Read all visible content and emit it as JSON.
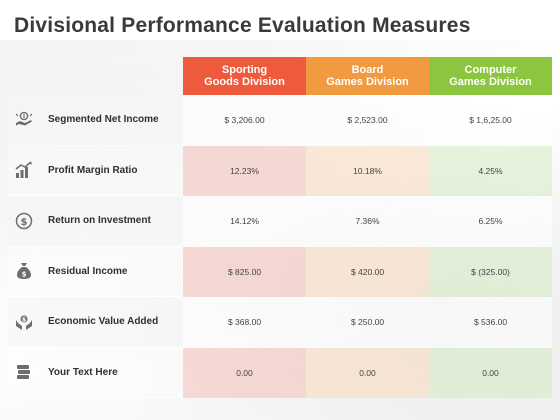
{
  "slide": {
    "title": "Divisional Performance Evaluation Measures"
  },
  "colors": {
    "sporting": "#ee5a3c",
    "board": "#f29a3f",
    "computer": "#8cc63f",
    "icon": "#6d6d6d"
  },
  "columns": [
    {
      "label_line1": "Sporting",
      "label_line2": "Goods Division"
    },
    {
      "label_line1": "Board",
      "label_line2": "Games Division"
    },
    {
      "label_line1": "Computer",
      "label_line2": "Games Division"
    }
  ],
  "rows": [
    {
      "label": "Segmented Net Income",
      "icon": "hand-dollar-icon",
      "values": [
        "$ 3,206.00",
        "$ 2,523.00",
        "$ 1,6,25.00"
      ]
    },
    {
      "label": "Profit Margin Ratio",
      "icon": "growth-chart-icon",
      "values": [
        "12.23%",
        "10.18%",
        "4.25%"
      ]
    },
    {
      "label": "Return on Investment",
      "icon": "dollar-cycle-icon",
      "values": [
        "14.12%",
        "7.36%",
        "6.25%"
      ]
    },
    {
      "label": "Residual Income",
      "icon": "money-bag-icon",
      "values": [
        "$ 825.00",
        "$ 420.00",
        "$ (325.00)"
      ]
    },
    {
      "label": "Economic Value Added",
      "icon": "hands-dollar-icon",
      "values": [
        "$ 368.00",
        "$ 250.00",
        "$ 536.00"
      ]
    },
    {
      "label": "Your Text Here",
      "icon": "money-stack-icon",
      "values": [
        "0.00",
        "0.00",
        "0.00"
      ]
    }
  ]
}
